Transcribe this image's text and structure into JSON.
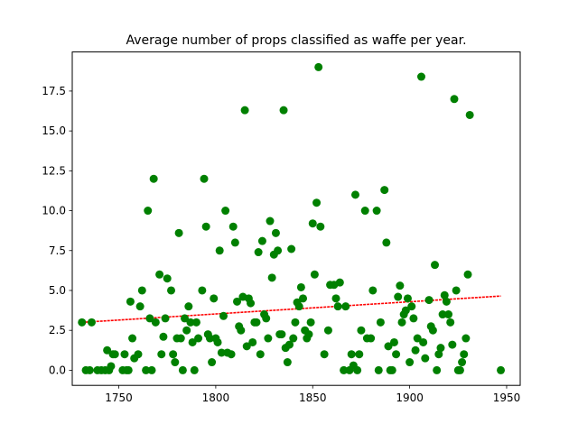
{
  "chart_data": {
    "type": "scatter",
    "title": "Average number of props classified as waffe per year.",
    "xlabel": "",
    "ylabel": "",
    "xlim": [
      1726,
      1957
    ],
    "ylim": [
      -0.95,
      19.95
    ],
    "xticks": [
      1750,
      1800,
      1850,
      1900,
      1950
    ],
    "yticks": [
      0.0,
      2.5,
      5.0,
      7.5,
      10.0,
      12.5,
      15.0,
      17.5
    ],
    "ytick_labels": [
      "0.0",
      "2.5",
      "5.0",
      "7.5",
      "10.0",
      "12.5",
      "15.0",
      "17.5"
    ],
    "grid": false,
    "point_color": "#008000",
    "trend_color": "#ff0000",
    "trend_line": {
      "x": [
        1731,
        1947
      ],
      "y": [
        3.0,
        4.65
      ]
    },
    "points": [
      [
        1731,
        3.0
      ],
      [
        1733,
        0.0
      ],
      [
        1735,
        0.0
      ],
      [
        1736,
        3.0
      ],
      [
        1739,
        0.0
      ],
      [
        1741,
        0.0
      ],
      [
        1743,
        0.0
      ],
      [
        1744,
        1.25
      ],
      [
        1745,
        0.0
      ],
      [
        1746,
        0.25
      ],
      [
        1747,
        1.0
      ],
      [
        1748,
        1.0
      ],
      [
        1752,
        0.0
      ],
      [
        1753,
        1.0
      ],
      [
        1754,
        0.0
      ],
      [
        1755,
        0.0
      ],
      [
        1756,
        4.3
      ],
      [
        1757,
        2.0
      ],
      [
        1758,
        0.75
      ],
      [
        1760,
        1.0
      ],
      [
        1761,
        4.0
      ],
      [
        1762,
        5.0
      ],
      [
        1764,
        0.0
      ],
      [
        1765,
        10.0
      ],
      [
        1766,
        3.25
      ],
      [
        1767,
        0.0
      ],
      [
        1768,
        12.0
      ],
      [
        1769,
        3.0
      ],
      [
        1771,
        6.0
      ],
      [
        1772,
        1.0
      ],
      [
        1773,
        2.1
      ],
      [
        1774,
        3.25
      ],
      [
        1775,
        5.75
      ],
      [
        1777,
        5.0
      ],
      [
        1778,
        1.0
      ],
      [
        1779,
        0.5
      ],
      [
        1780,
        2.0
      ],
      [
        1781,
        8.6
      ],
      [
        1782,
        2.0
      ],
      [
        1783,
        0.0
      ],
      [
        1784,
        3.25
      ],
      [
        1785,
        2.5
      ],
      [
        1786,
        4.0
      ],
      [
        1787,
        3.0
      ],
      [
        1788,
        1.75
      ],
      [
        1789,
        0.0
      ],
      [
        1790,
        3.0
      ],
      [
        1791,
        2.0
      ],
      [
        1793,
        5.0
      ],
      [
        1794,
        12.0
      ],
      [
        1795,
        9.0
      ],
      [
        1796,
        2.25
      ],
      [
        1797,
        2.0
      ],
      [
        1798,
        0.5
      ],
      [
        1799,
        4.5
      ],
      [
        1800,
        2.0
      ],
      [
        1801,
        1.75
      ],
      [
        1802,
        7.5
      ],
      [
        1803,
        1.1
      ],
      [
        1804,
        3.4
      ],
      [
        1805,
        10.0
      ],
      [
        1806,
        1.1
      ],
      [
        1808,
        1.0
      ],
      [
        1809,
        9.0
      ],
      [
        1810,
        8.0
      ],
      [
        1811,
        4.3
      ],
      [
        1812,
        2.75
      ],
      [
        1813,
        2.5
      ],
      [
        1814,
        4.6
      ],
      [
        1815,
        16.3
      ],
      [
        1816,
        1.5
      ],
      [
        1817,
        4.5
      ],
      [
        1818,
        4.2
      ],
      [
        1819,
        1.75
      ],
      [
        1820,
        3.0
      ],
      [
        1821,
        3.0
      ],
      [
        1822,
        7.4
      ],
      [
        1823,
        1.0
      ],
      [
        1824,
        8.1
      ],
      [
        1825,
        3.5
      ],
      [
        1826,
        3.25
      ],
      [
        1827,
        2.0
      ],
      [
        1828,
        9.35
      ],
      [
        1829,
        5.8
      ],
      [
        1830,
        7.25
      ],
      [
        1831,
        8.6
      ],
      [
        1832,
        7.5
      ],
      [
        1833,
        2.25
      ],
      [
        1834,
        2.25
      ],
      [
        1835,
        16.3
      ],
      [
        1836,
        1.4
      ],
      [
        1837,
        0.5
      ],
      [
        1838,
        1.6
      ],
      [
        1839,
        7.6
      ],
      [
        1840,
        2.0
      ],
      [
        1841,
        3.0
      ],
      [
        1842,
        4.25
      ],
      [
        1843,
        4.0
      ],
      [
        1844,
        5.2
      ],
      [
        1845,
        4.5
      ],
      [
        1846,
        2.5
      ],
      [
        1847,
        2.0
      ],
      [
        1848,
        2.25
      ],
      [
        1849,
        3.0
      ],
      [
        1850,
        9.2
      ],
      [
        1851,
        6.0
      ],
      [
        1852,
        10.5
      ],
      [
        1853,
        19.0
      ],
      [
        1854,
        9.0
      ],
      [
        1856,
        1.0
      ],
      [
        1858,
        2.5
      ],
      [
        1859,
        5.35
      ],
      [
        1861,
        5.35
      ],
      [
        1862,
        4.5
      ],
      [
        1863,
        4.0
      ],
      [
        1864,
        5.5
      ],
      [
        1866,
        0.0
      ],
      [
        1867,
        4.0
      ],
      [
        1869,
        0.0
      ],
      [
        1870,
        1.0
      ],
      [
        1871,
        0.3
      ],
      [
        1872,
        11.0
      ],
      [
        1873,
        0.0
      ],
      [
        1874,
        1.0
      ],
      [
        1875,
        2.5
      ],
      [
        1877,
        10.0
      ],
      [
        1878,
        2.0
      ],
      [
        1880,
        2.0
      ],
      [
        1881,
        5.0
      ],
      [
        1883,
        10.0
      ],
      [
        1884,
        0.0
      ],
      [
        1885,
        3.0
      ],
      [
        1887,
        11.3
      ],
      [
        1888,
        8.0
      ],
      [
        1889,
        1.5
      ],
      [
        1890,
        0.0
      ],
      [
        1891,
        0.0
      ],
      [
        1892,
        1.75
      ],
      [
        1893,
        1.0
      ],
      [
        1894,
        4.6
      ],
      [
        1895,
        5.3
      ],
      [
        1896,
        3.0
      ],
      [
        1897,
        3.5
      ],
      [
        1898,
        3.75
      ],
      [
        1899,
        4.5
      ],
      [
        1900,
        0.5
      ],
      [
        1901,
        4.0
      ],
      [
        1902,
        3.25
      ],
      [
        1903,
        1.25
      ],
      [
        1904,
        2.0
      ],
      [
        1906,
        18.4
      ],
      [
        1907,
        1.75
      ],
      [
        1908,
        0.75
      ],
      [
        1910,
        4.4
      ],
      [
        1911,
        2.75
      ],
      [
        1912,
        2.5
      ],
      [
        1913,
        6.6
      ],
      [
        1914,
        0.0
      ],
      [
        1915,
        1.0
      ],
      [
        1916,
        1.4
      ],
      [
        1917,
        3.5
      ],
      [
        1918,
        4.7
      ],
      [
        1919,
        4.3
      ],
      [
        1920,
        3.5
      ],
      [
        1921,
        3.0
      ],
      [
        1922,
        1.6
      ],
      [
        1923,
        17.0
      ],
      [
        1924,
        5.0
      ],
      [
        1925,
        0.0
      ],
      [
        1926,
        0.0
      ],
      [
        1927,
        0.5
      ],
      [
        1928,
        1.0
      ],
      [
        1929,
        2.0
      ],
      [
        1930,
        6.0
      ],
      [
        1931,
        16.0
      ],
      [
        1947,
        0.0
      ]
    ]
  }
}
